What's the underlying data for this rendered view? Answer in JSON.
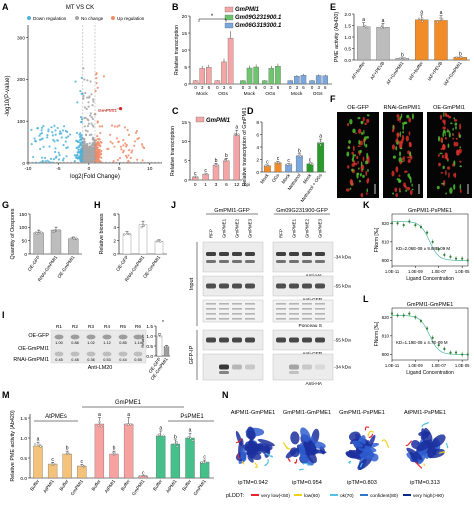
{
  "panels": {
    "A": {
      "letter": "A",
      "title": "MT VS CK",
      "legend": [
        "Down regulation",
        "No change",
        "Up regulation"
      ],
      "legend_colors": [
        "#4fb3d9",
        "#a6a6a6",
        "#f08c6a"
      ],
      "highlight": "GmPMI1",
      "xlabel": "log2(Fold Change)",
      "ylabel": "-log10(P-value)",
      "xticks": [
        "-10",
        "-5",
        "0",
        "5",
        "10"
      ],
      "yticks": [
        "0",
        "100",
        "200",
        "300"
      ]
    },
    "B": {
      "letter": "B",
      "ylabel": "Relative transcription",
      "yticks": [
        "0",
        "5",
        "10",
        "15",
        "20"
      ],
      "legend": [
        "GmPMI1",
        "Gm09G231900.1",
        "Gm06G319300.1"
      ],
      "colors": [
        "#f4a6a6",
        "#6fc46f",
        "#7aa7dd"
      ],
      "hours": [
        "0",
        "3",
        "6",
        "0",
        "3",
        "6"
      ],
      "treat": [
        "Mock",
        "OGs"
      ],
      "series": [
        {
          "values": [
            1.0,
            4.6,
            4.9,
            1.0,
            6.5,
            13.5
          ]
        },
        {
          "values": [
            1.0,
            4.7,
            5.0,
            1.0,
            4.6,
            5.2
          ]
        },
        {
          "values": [
            1.0,
            2.3,
            2.6,
            1.0,
            2.5,
            2.4
          ]
        }
      ],
      "sig": "*"
    },
    "C": {
      "letter": "C",
      "series": "GmPMI1",
      "ylabel": "Relative transcription",
      "yticks": [
        "0",
        "5",
        "10",
        "15"
      ],
      "categories": [
        "0",
        "1",
        "3",
        "6",
        "12"
      ],
      "values": [
        0.8,
        1.5,
        3.8,
        5.0,
        11.5
      ],
      "letters": [
        "c",
        "c",
        "b",
        "b",
        "a"
      ],
      "unit": "hpi"
    },
    "D": {
      "letter": "D",
      "ylabel": "Relative transcription of GmPMI1",
      "yticks": [
        "0",
        "2",
        "4",
        "6",
        "8"
      ],
      "categories": [
        "Mock",
        "OGs",
        "Mock",
        "Methanol",
        "Mock",
        "Methanol + OGs"
      ],
      "values": [
        1.0,
        1.5,
        1.2,
        2.6,
        1.3,
        4.7
      ],
      "letters": [
        "c",
        "c",
        "c",
        "b",
        "c",
        "a"
      ],
      "colors": [
        "#f28c28",
        "#f28c28",
        "#7aa7dd",
        "#7aa7dd",
        "#2a9b2a",
        "#2a9b2a"
      ]
    },
    "E": {
      "letter": "E",
      "ylabel": "PME activity (Ab420)",
      "yticks": [
        "0.0",
        "0.5",
        "1.0",
        "1.5",
        "2.0"
      ],
      "categories": [
        "AF+buffer",
        "AF+PEVB",
        "AF+GmPMI1",
        "IAF+buffer",
        "IAF+PEVB",
        "IAF+GmPMI1"
      ],
      "values": [
        1.45,
        1.42,
        0.08,
        1.75,
        1.72,
        0.12
      ],
      "letters": [
        "a",
        "a",
        "b",
        "a",
        "a",
        "b"
      ],
      "colors": [
        "#bcbcbc",
        "#bcbcbc",
        "#bcbcbc",
        "#f28c28",
        "#f28c28",
        "#f28c28"
      ]
    },
    "F": {
      "letter": "F",
      "labels": [
        "OE-GFP",
        "RNAi-GmPMI1",
        "OE-GmPMI1"
      ]
    },
    "G": {
      "letter": "G",
      "ylabel": "Quantity of Oospores",
      "yticks": [
        "0",
        "50",
        "100",
        "150"
      ],
      "categories": [
        "OE-GFP",
        "RNAi-GmPMI1",
        "OE-GmPMI1"
      ],
      "values": [
        80,
        90,
        57
      ]
    },
    "H": {
      "letter": "H",
      "ylabel": "Relative biomass",
      "yticks": [
        "0",
        "2",
        "4",
        "6"
      ],
      "categories": [
        "OE-GFP",
        "RNAi-GmPMI1",
        "OE-GmPMI1"
      ],
      "values": [
        3.0,
        4.4,
        1.9
      ]
    },
    "I": {
      "letter": "I",
      "lanes": [
        "R1",
        "R2",
        "R3",
        "R4",
        "R5",
        "R6"
      ],
      "rows": [
        "OE-GFP",
        "OE-GmPMI1",
        "RNAi-GmPMI1"
      ],
      "row1_values": [
        "1.00",
        "0.88",
        "1.02",
        "1.12",
        "0.85",
        "1.14"
      ],
      "row2_values": [
        "0.45",
        "0.48",
        "0.36",
        "0.53",
        "0.44",
        "0.55"
      ],
      "blot_label": "Anti-LM20",
      "inset_yticks": [
        "0.0",
        "0.5",
        "1.0",
        "1.5"
      ],
      "inset_categories": [
        "OE-GFP",
        "OE-GmPMI1"
      ],
      "inset_values": [
        1.0,
        0.47
      ],
      "inset_ylabel": "Relative",
      "sig": "*"
    },
    "J": {
      "letter": "J",
      "headers": [
        "GmPMI1-GFP",
        "Gm09G231900-GFP"
      ],
      "lanes": [
        "RFP",
        "GmPME1",
        "GmPME2",
        "GmPME3",
        "RFP",
        "GmPME1",
        "GmPME2",
        "GmPME3"
      ],
      "sections": [
        "Input",
        "GFP-IP"
      ],
      "markers": [
        "-34 kDa",
        "-55 kDa",
        "-34 kDa",
        "-55 kDa"
      ],
      "antibodies": [
        "Anti-HA",
        "Anti-GFP",
        "Ponceau S",
        "Anti-GFP",
        "Anti-HA"
      ]
    },
    "K": {
      "letter": "K",
      "title": "GmPMI1-PsPME1",
      "ylabel": "FNorm [‰]",
      "xlabel": "Ligand Concentration",
      "kd": "KD=2.06E-08 ± 9.88E-09 M",
      "xticks": [
        "1.0E-11",
        "1.0E-09",
        "1.0E-07",
        "1.0E-05"
      ],
      "yticks": [
        "800",
        "810",
        "820"
      ]
    },
    "L": {
      "letter": "L",
      "title": "GmPMI1-GmPME1",
      "ylabel": "FNorm [‰]",
      "xlabel": "Ligand Concentration",
      "kd": "KD=1.19E-08 ± 4.7E-09 M",
      "xticks": [
        "1.0E-11",
        "1.0E-09",
        "1.0E-07",
        "1.0E-05"
      ],
      "yticks": [
        "800",
        "810",
        "820"
      ]
    },
    "M": {
      "letter": "M",
      "group_titles": [
        "AtPMEs",
        "GmPME1",
        "PsPME1"
      ],
      "ylabel": "Relative PME activity (Ab420)",
      "yticks": [
        "0.0",
        "0.5",
        "1.0",
        "1.5"
      ],
      "categories": [
        "Buffer",
        "AtPMI1",
        "Buffer",
        "GmPMI1",
        "Buffer",
        "AtPMI1",
        "Buffer",
        "GmPMI1",
        "Buffer",
        "AtPMI1",
        "Buffer",
        "GmPMI1"
      ],
      "values": [
        0.8,
        0.35,
        0.6,
        0.3,
        1.35,
        0.6,
        1.35,
        0.05,
        1.05,
        0.85,
        1.0,
        0.4
      ],
      "letters": [
        "a",
        "c",
        "b",
        "c",
        "a",
        "b",
        "a",
        "c",
        "a",
        "b",
        "a",
        "c"
      ],
      "colors": [
        "#f4c27a",
        "#f4c27a",
        "#f4c27a",
        "#f4c27a",
        "#f7a1a1",
        "#f7a1a1",
        "#f7a1a1",
        "#f7a1a1",
        "#45c08a",
        "#45c08a",
        "#45c08a",
        "#45c08a"
      ]
    },
    "N": {
      "letter": "N",
      "titles": [
        "AtPMI1-GmPME1",
        "GmPMI1-GmPME1",
        "GmPMI1-PsPME1",
        "AtPMI1-PsPME1"
      ],
      "iptm": [
        "ipTM=0.942",
        "ipTM=0.954",
        "ipTM=0.803",
        "ipTM=0.313"
      ],
      "plddt_label": "pLDDT:",
      "plddt_legend": [
        "very low(<50)",
        "low(60)",
        "ok(70)",
        "confident(80)",
        "very high(>90)"
      ],
      "plddt_colors": [
        "#e8252a",
        "#f2d21b",
        "#51c2e3",
        "#2f78c8",
        "#0b2a8c"
      ]
    }
  },
  "chart_data": [
    {
      "panel": "A",
      "type": "scatter",
      "title": "MT VS CK",
      "xlabel": "log2(Fold Change)",
      "ylabel": "-log10(P-value)",
      "xlim": [
        -10,
        12
      ],
      "ylim": [
        0,
        330
      ],
      "series": [
        {
          "name": "Down regulation"
        },
        {
          "name": "No change"
        },
        {
          "name": "Up regulation"
        }
      ],
      "highlight": "GmPMI1"
    },
    {
      "panel": "B",
      "type": "bar",
      "ylabel": "Relative transcription",
      "ylim": [
        0,
        20
      ],
      "categories": [
        "0",
        "3",
        "6",
        "0",
        "3",
        "6"
      ],
      "series": [
        {
          "name": "GmPMI1",
          "values": [
            1.0,
            4.6,
            4.9,
            1.0,
            6.5,
            13.5
          ]
        },
        {
          "name": "Gm09G231900.1",
          "values": [
            1.0,
            4.7,
            5.0,
            1.0,
            4.6,
            5.2
          ]
        },
        {
          "name": "Gm06G319300.1",
          "values": [
            1.0,
            2.3,
            2.6,
            1.0,
            2.5,
            2.4
          ]
        }
      ]
    },
    {
      "panel": "C",
      "type": "bar",
      "ylabel": "Relative transcription",
      "ylim": [
        0,
        15
      ],
      "categories": [
        "0",
        "1",
        "3",
        "6",
        "12"
      ],
      "values": [
        0.8,
        1.5,
        3.8,
        5.0,
        11.5
      ]
    },
    {
      "panel": "D",
      "type": "bar",
      "ylabel": "Relative transcription of GmPMI1",
      "ylim": [
        0,
        8
      ],
      "categories": [
        "Mock",
        "OGs",
        "Mock",
        "Methanol",
        "Mock",
        "Methanol + OGs"
      ],
      "values": [
        1.0,
        1.5,
        1.2,
        2.6,
        1.3,
        4.7
      ]
    },
    {
      "panel": "E",
      "type": "bar",
      "ylabel": "PME activity (Ab420)",
      "ylim": [
        0,
        2
      ],
      "categories": [
        "AF+buffer",
        "AF+PEVB",
        "AF+GmPMI1",
        "IAF+buffer",
        "IAF+PEVB",
        "IAF+GmPMI1"
      ],
      "values": [
        1.45,
        1.42,
        0.08,
        1.75,
        1.72,
        0.12
      ]
    },
    {
      "panel": "G",
      "type": "bar",
      "ylabel": "Quantity of Oospores",
      "ylim": [
        0,
        150
      ],
      "categories": [
        "OE-GFP",
        "RNAi-GmPMI1",
        "OE-GmPMI1"
      ],
      "values": [
        80,
        90,
        57
      ]
    },
    {
      "panel": "H",
      "type": "bar",
      "ylabel": "Relative biomass",
      "ylim": [
        0,
        6
      ],
      "categories": [
        "OE-GFP",
        "RNAi-GmPMI1",
        "OE-GmPMI1"
      ],
      "values": [
        3.0,
        4.4,
        1.9
      ]
    },
    {
      "panel": "I",
      "type": "bar",
      "ylim": [
        0,
        1.5
      ],
      "categories": [
        "OE-GFP",
        "OE-GmPMI1"
      ],
      "values": [
        1.0,
        0.47
      ]
    },
    {
      "panel": "K",
      "type": "scatter",
      "title": "GmPMI1-PsPME1",
      "xlabel": "Ligand Concentration",
      "ylabel": "FNorm [‰]",
      "log_x": true,
      "x": [
        1e-11,
        3e-11,
        1e-10,
        3e-10,
        1e-09,
        3e-09,
        1e-08,
        3e-08,
        1e-07,
        3e-07,
        1e-06,
        3e-06,
        1e-05,
        3e-05
      ],
      "y": [
        820,
        820,
        819,
        821,
        819,
        818,
        815,
        810,
        806,
        803,
        802,
        801,
        801,
        800
      ]
    },
    {
      "panel": "L",
      "type": "scatter",
      "title": "GmPMI1-GmPME1",
      "xlabel": "Ligand Concentration",
      "ylabel": "FNorm [‰]",
      "log_x": true,
      "x": [
        1e-11,
        3e-11,
        1e-10,
        3e-10,
        1e-09,
        3e-09,
        1e-08,
        3e-08,
        1e-07,
        3e-07,
        1e-06,
        3e-06,
        1e-05,
        3e-05
      ],
      "y": [
        822,
        821,
        821,
        822,
        820,
        818,
        814,
        809,
        805,
        803,
        801,
        801,
        800,
        800
      ]
    },
    {
      "panel": "M",
      "type": "bar",
      "ylabel": "Relative PME activity (Ab420)",
      "ylim": [
        0,
        1.6
      ],
      "categories": [
        "Buffer",
        "AtPMI1",
        "Buffer",
        "GmPMI1",
        "Buffer",
        "AtPMI1",
        "Buffer",
        "GmPMI1",
        "Buffer",
        "AtPMI1",
        "Buffer",
        "GmPMI1"
      ],
      "values": [
        0.8,
        0.35,
        0.6,
        0.3,
        1.35,
        0.6,
        1.35,
        0.05,
        1.05,
        0.85,
        1.0,
        0.4
      ]
    }
  ]
}
